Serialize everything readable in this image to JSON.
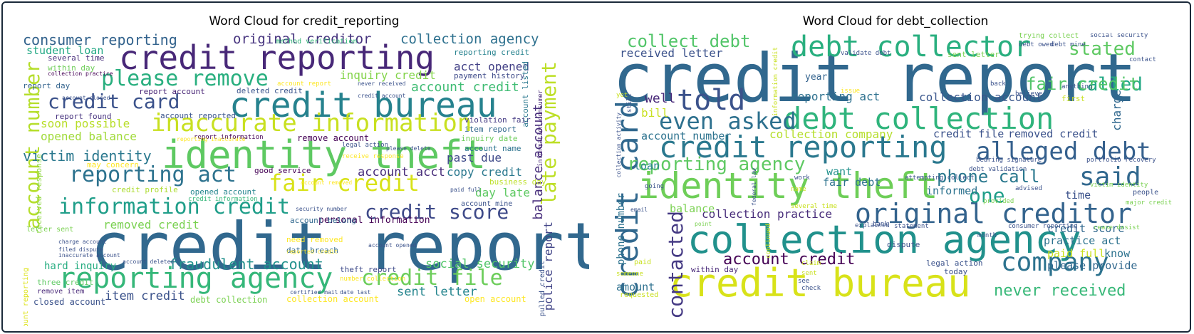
{
  "figure": {
    "left_title": "Word Cloud for credit_reporting",
    "right_title": "Word Cloud for debt_collection"
  },
  "colors": {
    "border": "#1b2a3a",
    "palette": "viridis"
  },
  "left_words": [
    {
      "t": "credit report",
      "c": "#31688e"
    },
    {
      "t": "identity theft",
      "c": "#5ec962"
    },
    {
      "t": "credit reporting",
      "c": "#482878"
    },
    {
      "t": "credit bureau",
      "c": "#26828e"
    },
    {
      "t": "reporting agency",
      "c": "#35b779"
    },
    {
      "t": "account number",
      "c": "#b5de2b",
      "v": 1
    },
    {
      "t": "inaccurate information",
      "c": "#c8e020"
    },
    {
      "t": "information credit",
      "c": "#1f9e89"
    },
    {
      "t": "fair credit",
      "c": "#d8e219"
    },
    {
      "t": "please remove",
      "c": "#29af7f"
    },
    {
      "t": "reporting act",
      "c": "#2c728e"
    },
    {
      "t": "late payment",
      "c": "#bddf26",
      "v": 1
    },
    {
      "t": "credit card",
      "c": "#3b528b"
    },
    {
      "t": "credit score",
      "c": "#3e4a89"
    },
    {
      "t": "credit file",
      "c": "#6ccd5a"
    },
    {
      "t": "fraudulent account",
      "c": "#21918c"
    },
    {
      "t": "victim identity",
      "c": "#2a788e"
    },
    {
      "t": "consumer reporting",
      "c": "#33638d"
    },
    {
      "t": "original creditor",
      "c": "#46337e"
    },
    {
      "t": "collection agency",
      "c": "#2d708e"
    },
    {
      "t": "opened balance",
      "c": "#a0da39"
    },
    {
      "t": "soon possible",
      "c": "#b8de29"
    },
    {
      "t": "account credit",
      "c": "#3fbc73"
    },
    {
      "t": "acct opened",
      "c": "#424086"
    },
    {
      "t": "inquiry credit",
      "c": "#84d44b"
    },
    {
      "t": "balance account",
      "c": "#472d7b",
      "v": 1
    },
    {
      "t": "police report",
      "c": "#414487",
      "v": 1
    },
    {
      "t": "social security",
      "c": "#52c569"
    },
    {
      "t": "item credit",
      "c": "#3b528b"
    },
    {
      "t": "sent letter",
      "c": "#25858e"
    },
    {
      "t": "account acct",
      "c": "#472c7a"
    },
    {
      "t": "removed credit",
      "c": "#7ad151"
    },
    {
      "t": "day late",
      "c": "#5ec962"
    },
    {
      "t": "past due",
      "c": "#3e4989"
    },
    {
      "t": "copy credit",
      "c": "#2a788e"
    },
    {
      "t": "student loan",
      "c": "#22a884"
    },
    {
      "t": "personal information",
      "c": "#440154"
    },
    {
      "t": "hard inquiry",
      "c": "#27ad81"
    },
    {
      "t": "report day",
      "c": "#33638d"
    },
    {
      "t": "several time",
      "c": "#472d7b"
    },
    {
      "t": "within day",
      "c": "#6ece58"
    },
    {
      "t": "report found",
      "c": "#46327e"
    },
    {
      "t": "deleted credit",
      "c": "#3a548c"
    },
    {
      "t": "report account",
      "c": "#482576"
    },
    {
      "t": "account reported",
      "c": "#3a548c"
    },
    {
      "t": "reporting credit",
      "c": "#26828e"
    },
    {
      "t": "payment history",
      "c": "#3e4a89"
    },
    {
      "t": "account name",
      "c": "#2c728e"
    },
    {
      "t": "business day",
      "c": "#bddf26"
    },
    {
      "t": "inquiry date",
      "c": "#6ccd5a"
    },
    {
      "t": "good service",
      "c": "#440154"
    },
    {
      "t": "may concern",
      "c": "#fde725"
    },
    {
      "t": "credit profile",
      "c": "#addc30"
    },
    {
      "t": "opened account",
      "c": "#25858e"
    },
    {
      "t": "account belong",
      "c": "#31688e"
    },
    {
      "t": "data breach",
      "c": "#31688e"
    },
    {
      "t": "need removed",
      "c": "#fde725"
    },
    {
      "t": "theft report",
      "c": "#3e4a89"
    },
    {
      "t": "remove account",
      "c": "#440154"
    },
    {
      "t": "method verification",
      "c": "#35b779"
    },
    {
      "t": "violation fair",
      "c": "#443a83"
    },
    {
      "t": "item report",
      "c": "#31688e"
    },
    {
      "t": "account listed",
      "c": "#2a788e",
      "v": 1
    },
    {
      "t": "account mine",
      "c": "#3b528b"
    },
    {
      "t": "pulled credit",
      "c": "#3b528b",
      "v": 1
    },
    {
      "t": "open account",
      "c": "#fde725"
    },
    {
      "t": "collection account",
      "c": "#fde725"
    },
    {
      "t": "debt collection",
      "c": "#7ad151"
    },
    {
      "t": "closed account",
      "c": "#3b528b"
    },
    {
      "t": "remove item",
      "c": "#482878"
    },
    {
      "t": "three credit",
      "c": "#5ec962"
    },
    {
      "t": "received response",
      "c": "#8fd744",
      "v": 1
    },
    {
      "t": "letter sent",
      "c": "#7ad151"
    },
    {
      "t": "account reporting",
      "c": "#dde318",
      "v": 1
    },
    {
      "t": "collection practice",
      "c": "#440154"
    },
    {
      "t": "account closed",
      "c": "#3b528b"
    },
    {
      "t": "report information",
      "c": "#440154"
    },
    {
      "t": "credit information",
      "c": "#35b779"
    },
    {
      "t": "information consumer",
      "c": "#482878",
      "v": 1
    },
    {
      "t": "security number",
      "c": "#3b528b"
    },
    {
      "t": "account opened",
      "c": "#3b528b"
    },
    {
      "t": "charge account",
      "c": "#3b528b"
    },
    {
      "t": "filed dispute",
      "c": "#3b528b"
    },
    {
      "t": "inaccurate account",
      "c": "#3b528b"
    },
    {
      "t": "account deleted",
      "c": "#3b528b"
    },
    {
      "t": "number collection",
      "c": "#fde725"
    },
    {
      "t": "certified mail",
      "c": "#3b528b"
    },
    {
      "t": "date last",
      "c": "#3b528b"
    },
    {
      "t": "paid full",
      "c": "#3b528b"
    },
    {
      "t": "never received",
      "c": "#3b528b"
    },
    {
      "t": "please delete",
      "c": "#3b528b"
    },
    {
      "t": "account report",
      "c": "#fde725"
    },
    {
      "t": "reported credit",
      "c": "#fde725"
    },
    {
      "t": "legal action",
      "c": "#3b528b"
    },
    {
      "t": "account removed",
      "c": "#fde725"
    },
    {
      "t": "reporting inaccurate",
      "c": "#fde725"
    },
    {
      "t": "credit account",
      "c": "#3b528b"
    },
    {
      "t": "receive response",
      "c": "#fde725"
    }
  ],
  "right_words": [
    {
      "t": "credit report",
      "c": "#31688e"
    },
    {
      "t": "collection agency",
      "c": "#21918c"
    },
    {
      "t": "credit bureau",
      "c": "#d8e219"
    },
    {
      "t": "identity theft",
      "c": "#6ece58"
    },
    {
      "t": "credit reporting",
      "c": "#2a788e"
    },
    {
      "t": "debt collection",
      "c": "#2fb47c"
    },
    {
      "t": "debt collector",
      "c": "#29af7f"
    },
    {
      "t": "original creditor",
      "c": "#33638d"
    },
    {
      "t": "told",
      "c": "#3b528b"
    },
    {
      "t": "said",
      "c": "#31688e"
    },
    {
      "t": "company",
      "c": "#2c728e"
    },
    {
      "t": "credit card",
      "c": "#31688e",
      "v": 1
    },
    {
      "t": "alleged debt",
      "c": "#35608d"
    },
    {
      "t": "even asked",
      "c": "#2d708e"
    },
    {
      "t": "reporting agency",
      "c": "#5ec962"
    },
    {
      "t": "collect debt",
      "c": "#52c569"
    },
    {
      "t": "stated",
      "c": "#5ec962"
    },
    {
      "t": "called",
      "c": "#22a884"
    },
    {
      "t": "phone call",
      "c": "#2a788e"
    },
    {
      "t": "one",
      "c": "#1f9e89"
    },
    {
      "t": "fair credit",
      "c": "#52c569"
    },
    {
      "t": "contacted",
      "c": "#443983",
      "v": 1
    },
    {
      "t": "account credit",
      "c": "#440154"
    },
    {
      "t": "never received",
      "c": "#37b878"
    },
    {
      "t": "collection practice",
      "c": "#472c7a"
    },
    {
      "t": "collection account",
      "c": "#39568c"
    },
    {
      "t": "received letter",
      "c": "#3b528b"
    },
    {
      "t": "reporting act",
      "c": "#2d708e"
    },
    {
      "t": "well",
      "c": "#482878"
    },
    {
      "t": "bill",
      "c": "#c8e020"
    },
    {
      "t": "collection company",
      "c": "#b5de2b"
    },
    {
      "t": "credit file",
      "c": "#3b528b"
    },
    {
      "t": "removed credit",
      "c": "#3b528b"
    },
    {
      "t": "charge",
      "c": "#31688e",
      "v": 1
    },
    {
      "t": "account number",
      "c": "#2c728e"
    },
    {
      "t": "fair debt",
      "c": "#2c728e"
    },
    {
      "t": "want",
      "c": "#21918c"
    },
    {
      "t": "loan",
      "c": "#26828e"
    },
    {
      "t": "informed",
      "c": "#2c728e"
    },
    {
      "t": "time",
      "c": "#3b528b"
    },
    {
      "t": "balance",
      "c": "#7ad151"
    },
    {
      "t": "credit score",
      "c": "#31688e"
    },
    {
      "t": "practice act",
      "c": "#2c728e"
    },
    {
      "t": "paid full",
      "c": "#c8e020"
    },
    {
      "t": "know",
      "c": "#2c728e"
    },
    {
      "t": "please provide",
      "c": "#31688e"
    },
    {
      "t": "phone number",
      "c": "#2c728e",
      "v": 1
    },
    {
      "t": "amount",
      "c": "#2d708e"
    },
    {
      "t": "within day",
      "c": "#482878"
    },
    {
      "t": "year",
      "c": "#33638d"
    },
    {
      "t": "first",
      "c": "#c8e020"
    },
    {
      "t": "anything",
      "c": "#3b528b"
    },
    {
      "t": "trying collect",
      "c": "#7ad151"
    },
    {
      "t": "social security",
      "c": "#3b528b"
    },
    {
      "t": "debt owed",
      "c": "#3b528b"
    },
    {
      "t": "sent letter",
      "c": "#7ad151"
    },
    {
      "t": "debt mine",
      "c": "#3b528b"
    },
    {
      "t": "validate debt",
      "c": "#3b528b"
    },
    {
      "t": "contact",
      "c": "#3b528b"
    },
    {
      "t": "back",
      "c": "#3b528b"
    },
    {
      "t": "believe",
      "c": "#3b528b"
    },
    {
      "t": "issue",
      "c": "#fde725"
    },
    {
      "t": "portfolio recovery",
      "c": "#3b528b"
    },
    {
      "t": "bearing signature",
      "c": "#3b528b"
    },
    {
      "t": "debt validation",
      "c": "#3b528b"
    },
    {
      "t": "victim identity",
      "c": "#7ad151"
    },
    {
      "t": "attempting collect",
      "c": "#3b528b"
    },
    {
      "t": "work",
      "c": "#3b528b"
    },
    {
      "t": "advised",
      "c": "#3b528b"
    },
    {
      "t": "people",
      "c": "#3b528b"
    },
    {
      "t": "major credit",
      "c": "#7ad151"
    },
    {
      "t": "provided",
      "c": "#7ad151"
    },
    {
      "t": "several time",
      "c": "#c8e020"
    },
    {
      "t": "explained",
      "c": "#3b528b"
    },
    {
      "t": "consumer reporting",
      "c": "#3b528b"
    },
    {
      "t": "cease desist",
      "c": "#7ad151"
    },
    {
      "t": "month",
      "c": "#3b528b"
    },
    {
      "t": "dispute",
      "c": "#3b528b"
    },
    {
      "t": "legal action",
      "c": "#3b528b"
    },
    {
      "t": "today",
      "c": "#3b528b"
    },
    {
      "t": "bank",
      "c": "#3b528b"
    },
    {
      "t": "statement",
      "c": "#3b528b"
    },
    {
      "t": "collection activity",
      "c": "#3b528b",
      "v": 1
    },
    {
      "t": "information credit",
      "c": "#c8e020",
      "v": 1
    },
    {
      "t": "still",
      "c": "#3b528b",
      "v": 1
    },
    {
      "t": "federal law",
      "c": "#3b528b",
      "v": 1
    },
    {
      "t": "continued",
      "c": "#c8e020",
      "v": 1
    },
    {
      "t": "going",
      "c": "#3b528b"
    },
    {
      "t": "email",
      "c": "#3b528b"
    },
    {
      "t": "point",
      "c": "#7ad151"
    },
    {
      "t": "name",
      "c": "#c8e020"
    },
    {
      "t": "sent",
      "c": "#c8e020"
    },
    {
      "t": "see",
      "c": "#3b528b"
    },
    {
      "t": "check",
      "c": "#3b528b"
    },
    {
      "t": "claim",
      "c": "#c8e020"
    },
    {
      "t": "someone",
      "c": "#c8e020"
    },
    {
      "t": "paid",
      "c": "#c8e020"
    },
    {
      "t": "requested",
      "c": "#c8e020"
    },
    {
      "t": "yet",
      "c": "#c8e020"
    }
  ]
}
